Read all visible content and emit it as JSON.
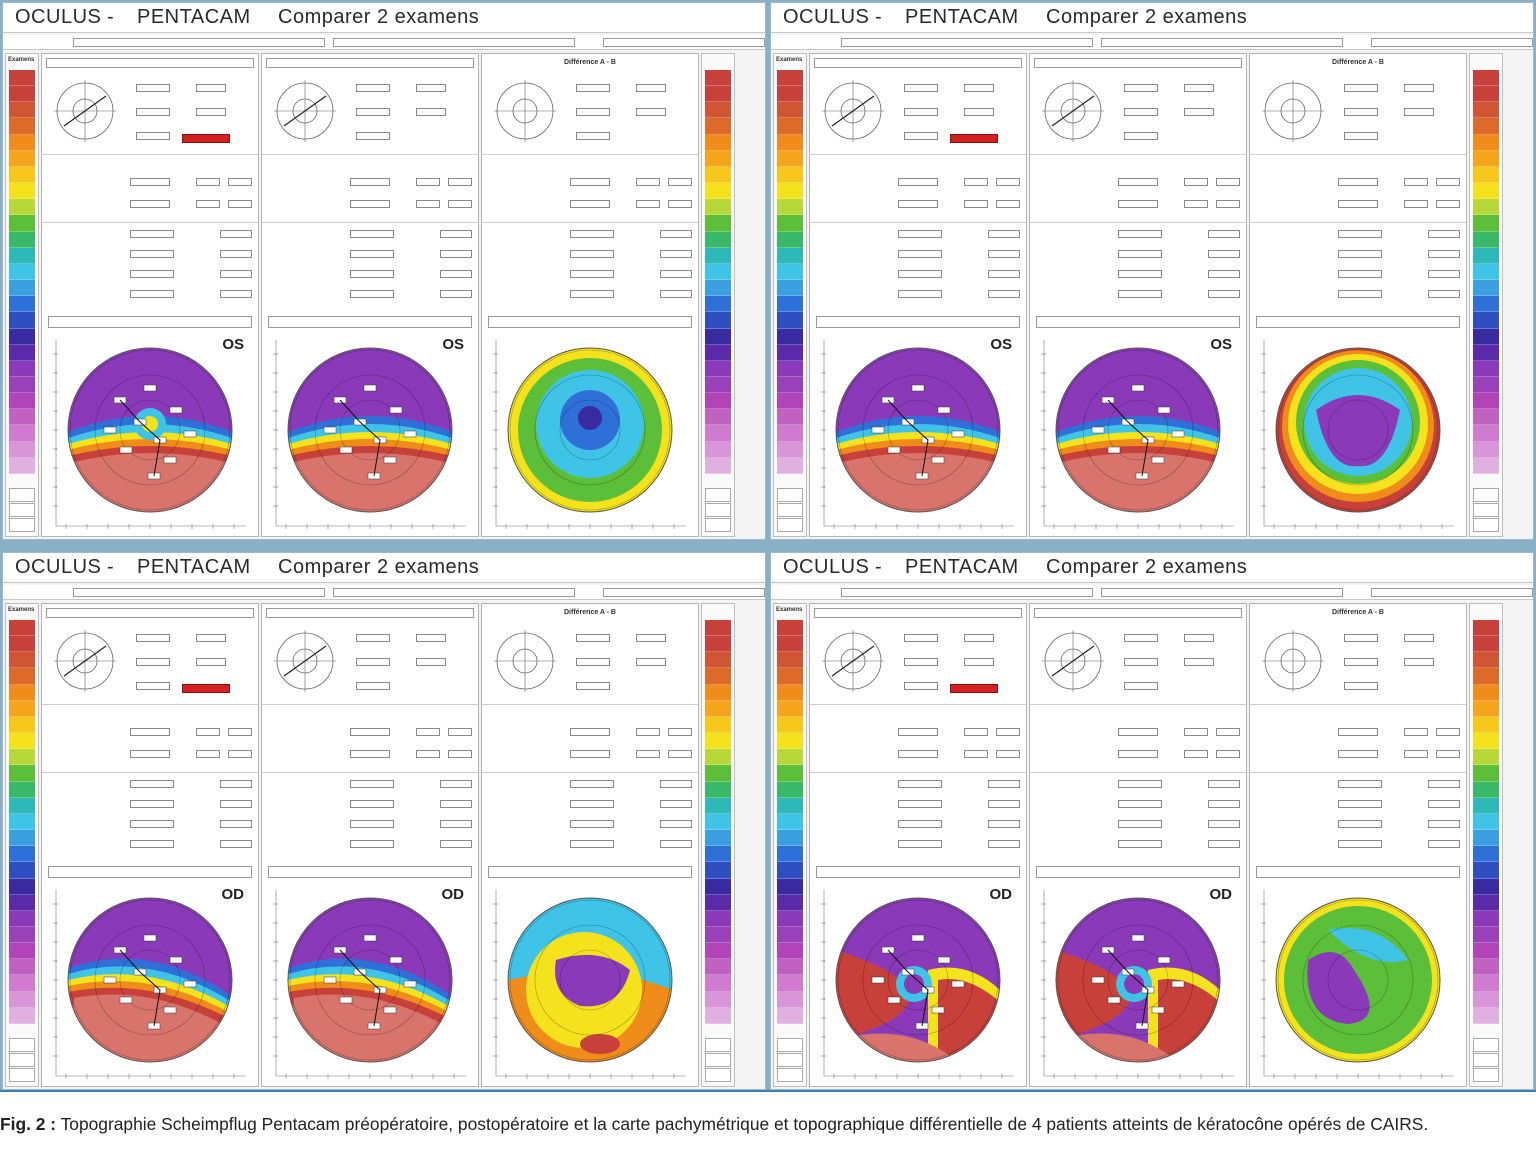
{
  "figure": {
    "panels": [
      {
        "brand": "OCULUS",
        "separator": "-",
        "product": "PENTACAM",
        "action": "Comparer 2 examens",
        "scale_header": "Examens",
        "diff_header": "Différence A - B",
        "eye": "OS",
        "map_style_a": "postop_split",
        "map_style_b": "postop_dome",
        "map_style_d": "diff_green"
      },
      {
        "brand": "OCULUS",
        "separator": "-",
        "product": "PENTACAM",
        "action": "Comparer 2 examens",
        "scale_header": "Examens",
        "diff_header": "Différence A - B",
        "eye": "OS",
        "map_style_a": "bowtie",
        "map_style_b": "bowtie",
        "map_style_d": "diff_purple"
      },
      {
        "brand": "OCULUS",
        "separator": "-",
        "product": "PENTACAM",
        "action": "Comparer 2 examens",
        "scale_header": "Examens",
        "diff_header": "Différence A - B",
        "eye": "OD",
        "map_style_a": "band",
        "map_style_b": "band",
        "map_style_d": "diff_mixed"
      },
      {
        "brand": "OCULUS",
        "separator": "-",
        "product": "PENTACAM",
        "action": "Comparer 2 examens",
        "scale_header": "Examens",
        "diff_header": "Différence A - B",
        "eye": "OD",
        "map_style_a": "swirl",
        "map_style_b": "swirl2",
        "map_style_d": "diff_green2"
      }
    ],
    "colors": {
      "red": "#c8403a",
      "salmon": "#d9746d",
      "orange": "#f08c1a",
      "yellow": "#f4e21c",
      "green": "#5cbf3a",
      "cyan": "#3fc4e8",
      "blue": "#2f6fd8",
      "navy": "#3a2aa0",
      "purple": "#8a3ab8",
      "magenta": "#b044b8"
    }
  },
  "caption": {
    "label": "Fig. 2 :",
    "text": "Topographie Scheimpflug Pentacam préopératoire, postopératoire et la carte pachymétrique et topographique différentielle de 4 patients atteints de kératocône opérés de CAIRS."
  }
}
